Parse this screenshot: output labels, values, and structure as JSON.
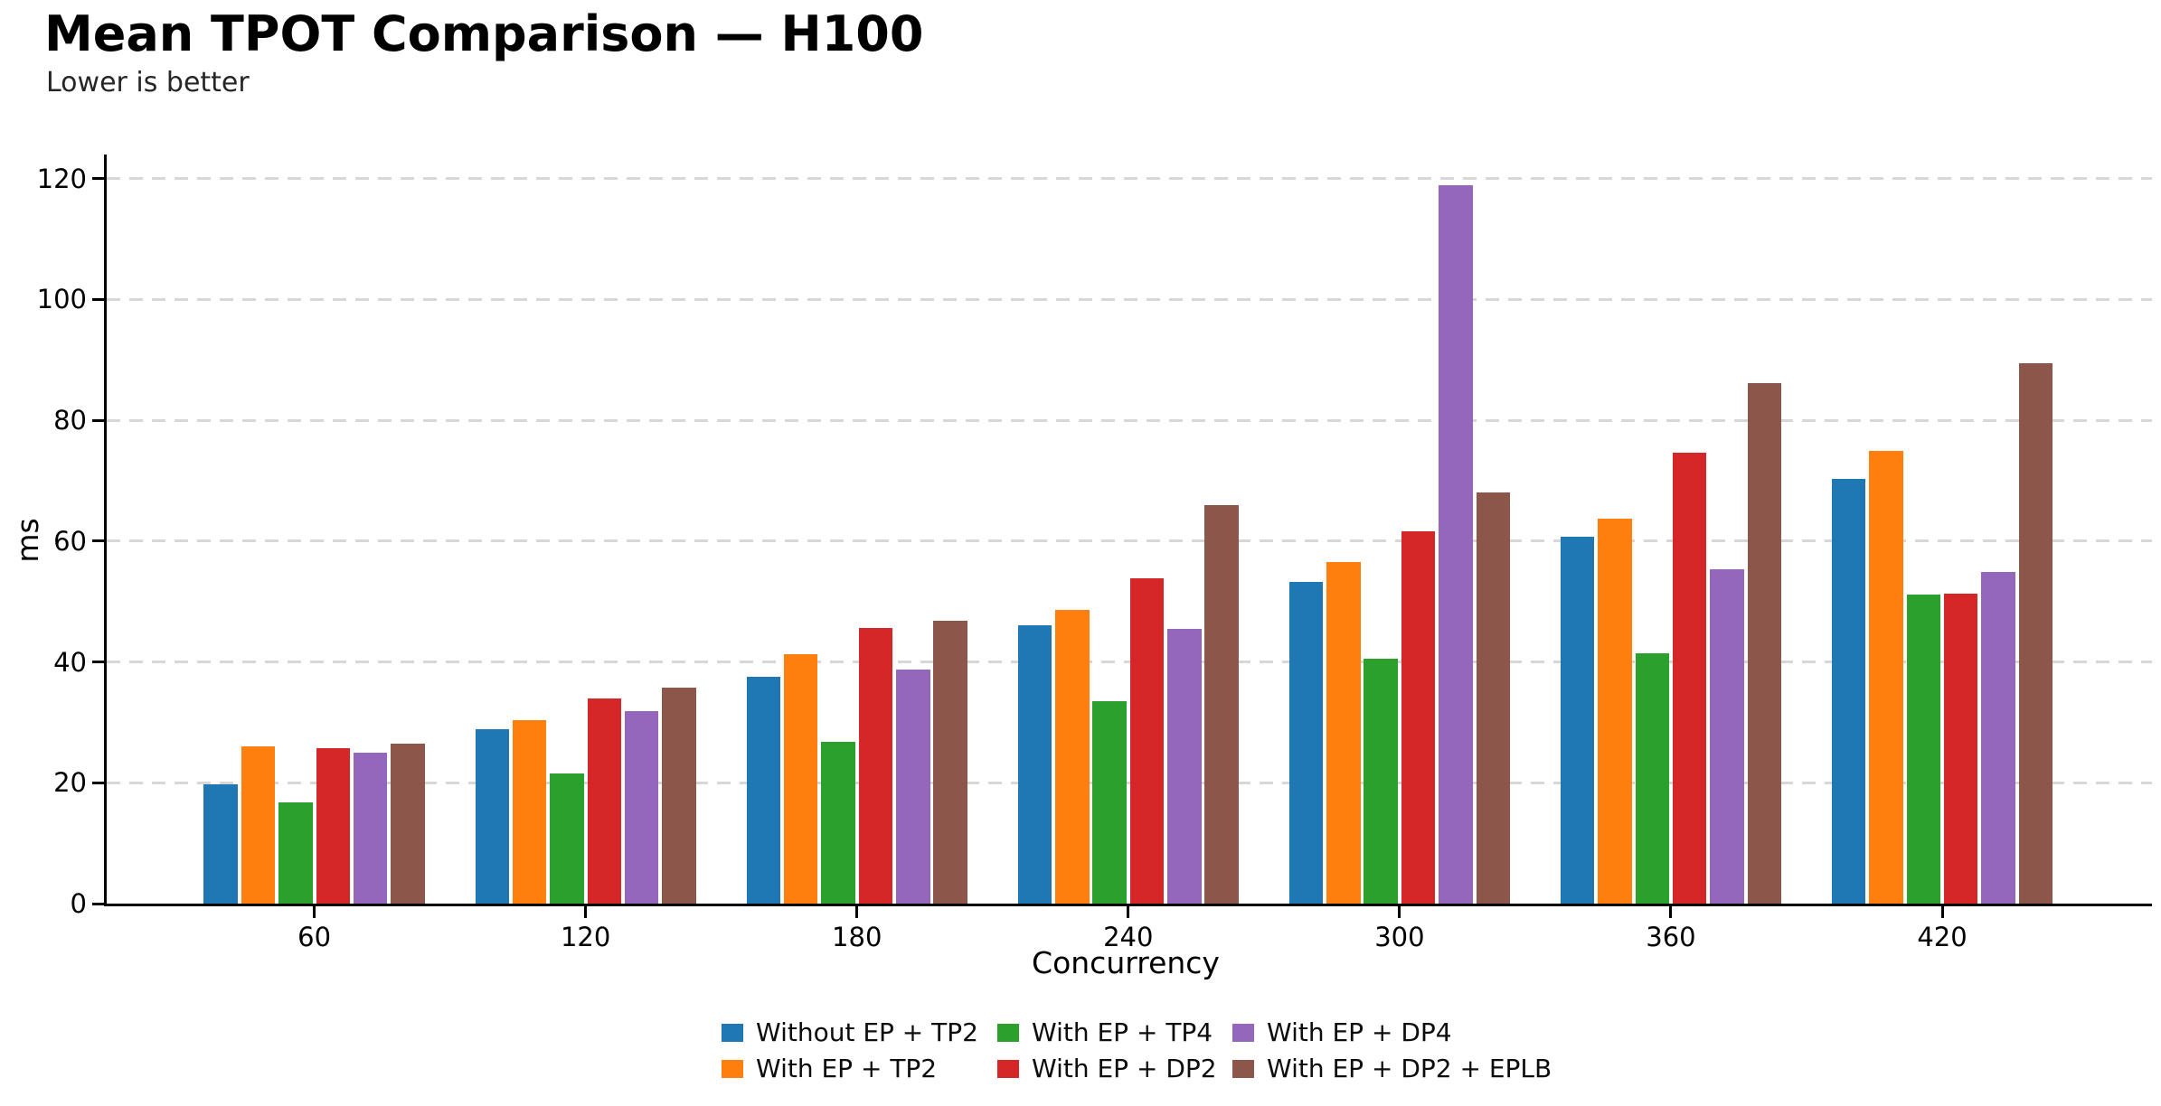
{
  "title": "Mean TPOT Comparison — H100",
  "subtitle": "Lower is better",
  "chart_data": {
    "type": "bar",
    "title": "Mean TPOT Comparison — H100",
    "subtitle": "Lower is better",
    "xlabel": "Concurrency",
    "ylabel": "ms",
    "ylim": [
      0,
      124
    ],
    "yticks": [
      0,
      20,
      40,
      60,
      80,
      100,
      120
    ],
    "grid": "horizontal-dashed",
    "legend_position": "bottom-center-3-columns",
    "categories": [
      "60",
      "120",
      "180",
      "240",
      "300",
      "360",
      "420"
    ],
    "series": [
      {
        "name": "Without EP + TP2",
        "color": "#1f77b4",
        "values": [
          19.7,
          28.8,
          37.6,
          46.0,
          53.3,
          60.7,
          70.3
        ]
      },
      {
        "name": "With EP + TP2",
        "color": "#ff7f0e",
        "values": [
          26.0,
          30.4,
          41.3,
          48.6,
          56.6,
          63.7,
          75.0
        ]
      },
      {
        "name": "With EP + TP4",
        "color": "#2ca02c",
        "values": [
          16.7,
          21.5,
          26.8,
          33.5,
          40.6,
          41.4,
          51.2
        ]
      },
      {
        "name": "With EP + DP2",
        "color": "#d62728",
        "values": [
          25.8,
          34.0,
          45.6,
          53.8,
          61.6,
          74.6,
          51.3
        ]
      },
      {
        "name": "With EP + DP4",
        "color": "#9467bd",
        "values": [
          25.0,
          31.8,
          38.8,
          45.4,
          118.9,
          55.4,
          54.9
        ]
      },
      {
        "name": "With EP + DP2 + EPLB",
        "color": "#8c564b",
        "values": [
          26.5,
          35.8,
          46.8,
          65.9,
          68.0,
          86.1,
          89.5
        ]
      }
    ]
  }
}
